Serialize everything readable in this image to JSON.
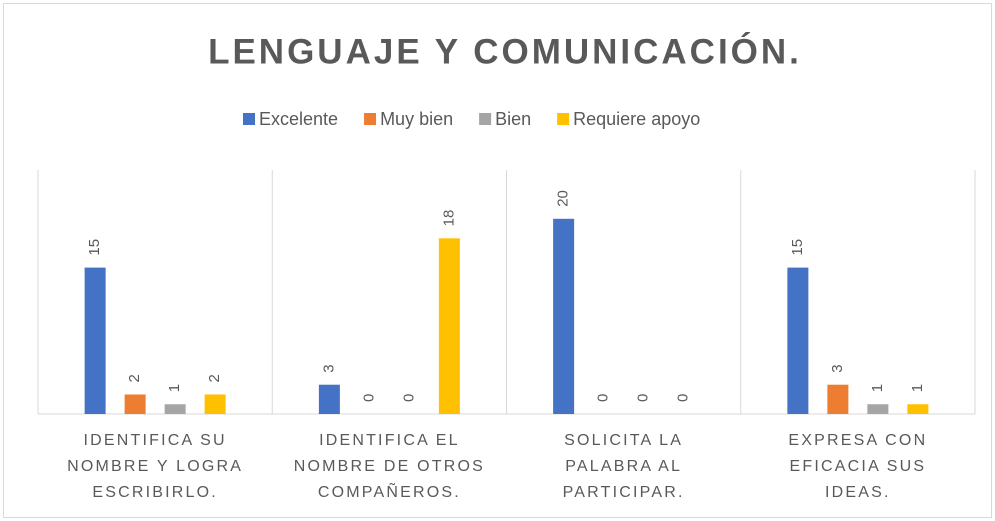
{
  "chart_data": {
    "type": "bar",
    "title": "LENGUAJE Y COMUNICACIÓN.",
    "categories": [
      "IDENTIFICA SU NOMBRE Y LOGRA ESCRIBIRLO.",
      "IDENTIFICA EL NOMBRE DE OTROS COMPAÑEROS.",
      "SOLICITA LA PALABRA AL PARTICIPAR.",
      "EXPRESA CON EFICACIA SUS IDEAS."
    ],
    "series": [
      {
        "name": "Excelente",
        "color": "#4472c4",
        "values": [
          15,
          3,
          20,
          15
        ]
      },
      {
        "name": "Muy bien",
        "color": "#ed7d31",
        "values": [
          2,
          0,
          0,
          3
        ]
      },
      {
        "name": "Bien",
        "color": "#a5a5a5",
        "values": [
          1,
          0,
          0,
          1
        ]
      },
      {
        "name": "Requiere apoyo",
        "color": "#ffc000",
        "values": [
          2,
          18,
          0,
          1
        ]
      }
    ],
    "ylim": [
      0,
      25
    ],
    "legend": "top"
  }
}
